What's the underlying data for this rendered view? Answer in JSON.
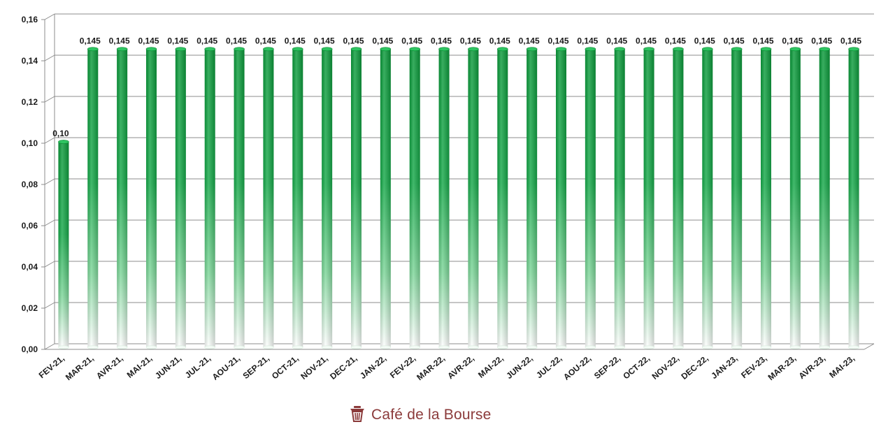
{
  "chart_data": {
    "type": "bar",
    "categories": [
      "FEV-21,",
      "MAR-21,",
      "AVR-21,",
      "MAI-21,",
      "JUN-21,",
      "JUL-21,",
      "AOU-21,",
      "SEP-21,",
      "OCT-21,",
      "NOV-21,",
      "DEC-21,",
      "JAN-22,",
      "FEV-22,",
      "MAR-22,",
      "AVR-22,",
      "MAI-22,",
      "JUN-22,",
      "JUL-22,",
      "AOU-22,",
      "SEP-22,",
      "OCT-22,",
      "NOV-22,",
      "DEC-22,",
      "JAN-23,",
      "FEV-23,",
      "MAR-23,",
      "AVR-23,",
      "MAI-23,"
    ],
    "values": [
      0.1,
      0.145,
      0.145,
      0.145,
      0.145,
      0.145,
      0.145,
      0.145,
      0.145,
      0.145,
      0.145,
      0.145,
      0.145,
      0.145,
      0.145,
      0.145,
      0.145,
      0.145,
      0.145,
      0.145,
      0.145,
      0.145,
      0.145,
      0.145,
      0.145,
      0.145,
      0.145,
      0.145
    ],
    "value_labels": [
      "0,10",
      "0,145",
      "0,145",
      "0,145",
      "0,145",
      "0,145",
      "0,145",
      "0,145",
      "0,145",
      "0,145",
      "0,145",
      "0,145",
      "0,145",
      "0,145",
      "0,145",
      "0,145",
      "0,145",
      "0,145",
      "0,145",
      "0,145",
      "0,145",
      "0,145",
      "0,145",
      "0,145",
      "0,145",
      "0,145",
      "0,145",
      "0,145"
    ],
    "yticks": [
      "0,00",
      "0,02",
      "0,04",
      "0,06",
      "0,08",
      "0,10",
      "0,12",
      "0,14",
      "0,16"
    ],
    "ytick_values": [
      0,
      0.02,
      0.04,
      0.06,
      0.08,
      0.1,
      0.12,
      0.14,
      0.16
    ],
    "ylim": [
      0,
      0.16
    ],
    "grid": true,
    "title": "",
    "xlabel": "",
    "ylabel": "",
    "colors": {
      "bar_top": "#0a9a3a",
      "bar_bottom": "#ffffff",
      "grid": "#8c8c8c"
    }
  },
  "watermark": {
    "text": "Café de la Bourse",
    "icon": "coffee-cup-icon",
    "color": "#8b3a3a"
  }
}
